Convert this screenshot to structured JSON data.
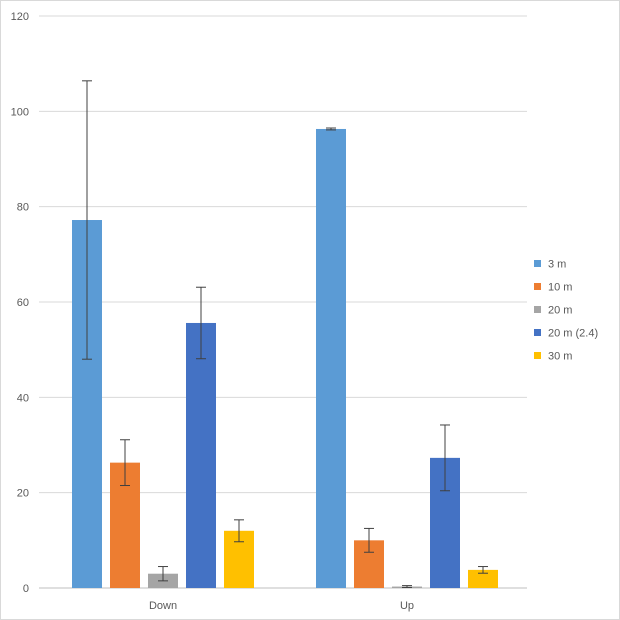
{
  "chart_data": {
    "type": "bar",
    "title": "",
    "xlabel": "",
    "ylabel": "",
    "ylim": [
      0,
      120
    ],
    "yticks": [
      0,
      20,
      40,
      60,
      80,
      100,
      120
    ],
    "categories": [
      "Down",
      "Up"
    ],
    "grid": true,
    "legend_position": "right",
    "error_bars": true,
    "series": [
      {
        "name": "3 m",
        "color": "#5b9bd5",
        "values": [
          77.2,
          96.3
        ],
        "errors": [
          29.2,
          0.2
        ]
      },
      {
        "name": "10 m",
        "color": "#ed7d31",
        "values": [
          26.3,
          10.0
        ],
        "errors": [
          4.8,
          2.5
        ]
      },
      {
        "name": "20 m",
        "color": "#a5a5a5",
        "values": [
          3.0,
          0.3
        ],
        "errors": [
          1.5,
          0.2
        ]
      },
      {
        "name": "20 m (2.4)",
        "color": "#4472c4",
        "values": [
          55.6,
          27.3
        ],
        "errors": [
          7.5,
          6.9
        ]
      },
      {
        "name": "30 m",
        "color": "#ffc000",
        "values": [
          12.0,
          3.8
        ],
        "errors": [
          2.3,
          0.7
        ]
      }
    ]
  }
}
